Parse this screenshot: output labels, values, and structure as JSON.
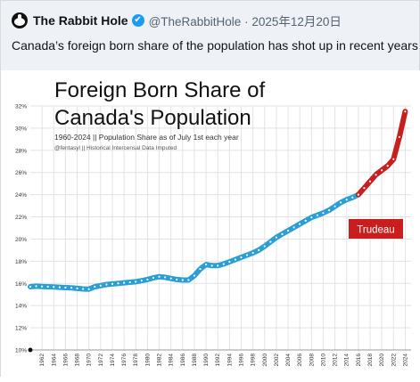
{
  "tweet": {
    "author_name": "The Rabbit Hole",
    "verified_badge": "✔",
    "handle_date": "@TheRabbitHole · 2025年12月20日",
    "text": "Canada’s foreign born share of the population has shot up in recent years",
    "avatar_icon": "rabbit-avatar-icon",
    "verified_icon": "verified-check-icon"
  },
  "chart_data": {
    "type": "line",
    "title": "Foreign Born Share of Canada's Population",
    "title_line1": "Foreign Born Share of",
    "title_line2": "Canada's Population",
    "subtitle": "1960-2024 || Population Share as of July 1st each year",
    "source_note": "@fentasyl || Historical Intercensal Data Imputed",
    "annotation": "Trudeau",
    "ylim": [
      10,
      32
    ],
    "xlim": [
      1960,
      2025
    ],
    "yticks": [
      10,
      12,
      14,
      16,
      18,
      20,
      22,
      24,
      26,
      28,
      30,
      32
    ],
    "ytick_labels": [
      "10%",
      "12%",
      "14%",
      "16%",
      "18%",
      "20%",
      "22%",
      "24%",
      "26%",
      "28%",
      "30%",
      "32%"
    ],
    "xticks": [
      1962,
      1964,
      1966,
      1968,
      1970,
      1972,
      1974,
      1976,
      1978,
      1980,
      1982,
      1984,
      1986,
      1988,
      1990,
      1992,
      1994,
      1996,
      1998,
      2000,
      2002,
      2004,
      2006,
      2008,
      2010,
      2012,
      2014,
      2016,
      2018,
      2020,
      2022,
      2024
    ],
    "grid": true,
    "colors": {
      "pre_trudeau": "#2a9fd6",
      "trudeau": "#c81e1e",
      "annotation_bg": "#c81e1e"
    },
    "series": [
      {
        "segment": "pre",
        "x": [
          1960,
          1961,
          1962,
          1963,
          1964,
          1965,
          1966,
          1967,
          1968,
          1969,
          1970,
          1971,
          1972,
          1973,
          1974,
          1975,
          1976,
          1977,
          1978,
          1979,
          1980,
          1981,
          1982,
          1983,
          1984,
          1985,
          1986,
          1987,
          1988,
          1989,
          1990,
          1991,
          1992,
          1993,
          1994,
          1995,
          1996,
          1997,
          1998,
          1999,
          2000,
          2001,
          2002,
          2003,
          2004,
          2005,
          2006,
          2007,
          2008,
          2009,
          2010,
          2011,
          2012,
          2013,
          2014,
          2015,
          2016
        ],
        "values": [
          15.7,
          15.75,
          15.72,
          15.7,
          15.68,
          15.65,
          15.62,
          15.6,
          15.55,
          15.5,
          15.48,
          15.7,
          15.8,
          15.9,
          15.95,
          16.0,
          16.05,
          16.1,
          16.15,
          16.25,
          16.35,
          16.5,
          16.6,
          16.55,
          16.45,
          16.35,
          16.3,
          16.3,
          16.7,
          17.3,
          17.7,
          17.6,
          17.6,
          17.75,
          17.95,
          18.15,
          18.35,
          18.55,
          18.75,
          19.0,
          19.35,
          19.75,
          20.15,
          20.45,
          20.75,
          21.05,
          21.35,
          21.65,
          21.95,
          22.15,
          22.35,
          22.6,
          22.95,
          23.3,
          23.55,
          23.75,
          24.0
        ]
      },
      {
        "segment": "trudeau",
        "x": [
          2016,
          2017,
          2018,
          2019,
          2020,
          2021,
          2022,
          2023,
          2024
        ],
        "values": [
          24.0,
          24.6,
          25.2,
          25.8,
          26.2,
          26.6,
          27.2,
          29.2,
          31.5
        ]
      }
    ]
  }
}
